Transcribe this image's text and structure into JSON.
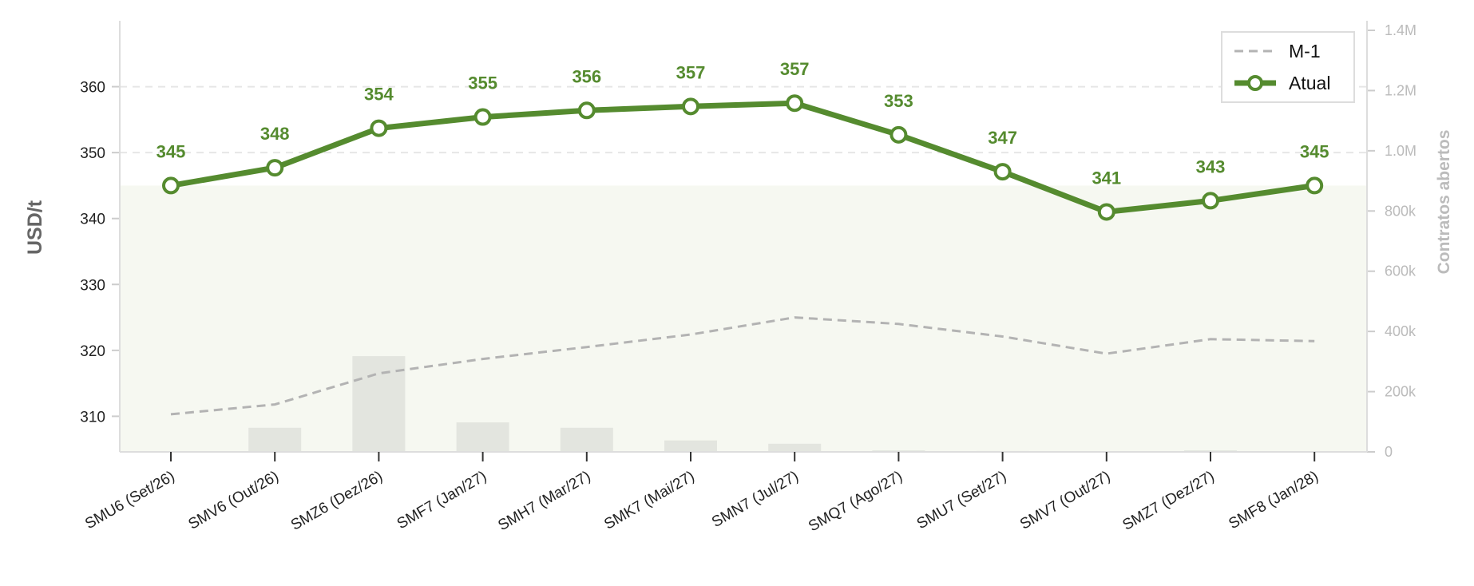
{
  "chart_data": {
    "type": "line",
    "categories": [
      "SMU6 (Set/26)",
      "SMV6 (Out/26)",
      "SMZ6 (Dez/26)",
      "SMF7 (Jan/27)",
      "SMH7 (Mar/27)",
      "SMK7 (Mai/27)",
      "SMN7 (Jul/27)",
      "SMQ7 (Ago/27)",
      "SMU7 (Set/27)",
      "SMV7 (Out/27)",
      "SMZ7 (Dez/27)",
      "SMF8 (Jan/28)"
    ],
    "series": [
      {
        "name": "Atual",
        "axis": "left",
        "values": [
          345,
          347.7,
          353.7,
          355.4,
          356.4,
          357,
          357.5,
          352.7,
          347.1,
          341,
          342.7,
          345
        ],
        "labels": [
          "345",
          "348",
          "354",
          "355",
          "356",
          "357",
          "357",
          "353",
          "347",
          "341",
          "343",
          "345"
        ],
        "color": "#558b2f"
      },
      {
        "name": "M-1",
        "axis": "left",
        "values": [
          310.3,
          311.8,
          316.5,
          318.7,
          320.5,
          322.4,
          325,
          324,
          322.1,
          319.5,
          321.7,
          321.4
        ],
        "color": "#b3b3b3"
      },
      {
        "name": "",
        "kind": "bar",
        "axis": "right",
        "values": [
          0,
          80000,
          318000,
          98000,
          80000,
          38000,
          27000,
          5000,
          3000,
          1000,
          5000,
          2000
        ],
        "color": "#e3e5df"
      }
    ],
    "y_left": {
      "label": "USD/t",
      "ticks": [
        "310",
        "320",
        "330",
        "340",
        "350",
        "360"
      ],
      "min": 304.6,
      "max": 370
    },
    "y_right": {
      "label": "Contratos abertos",
      "ticks": [
        "0",
        "200k",
        "400k",
        "600k",
        "800k",
        "1.0M",
        "1.2M",
        "1.4M"
      ],
      "min": 0,
      "max": 1400000
    },
    "reference_band_top": 345,
    "grid": "horizontal dashed",
    "legend_position": "top-right",
    "legend": [
      "M-1",
      "Atual"
    ]
  }
}
